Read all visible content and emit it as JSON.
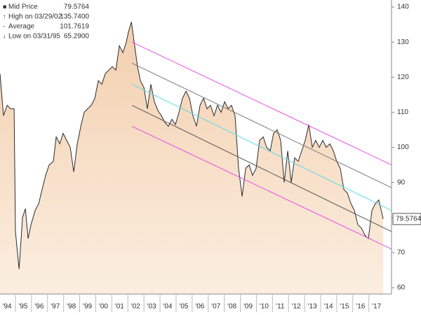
{
  "chart_data": {
    "type": "area",
    "color": "#2b2b2b",
    "fill_top": "#f3cfae",
    "fill_bottom": "#fbeee0",
    "x": [
      1994.06,
      1994.28,
      1994.5,
      1994.72,
      1994.94,
      1995.02,
      1995.25,
      1995.46,
      1995.64,
      1995.81,
      1995.99,
      1996.25,
      1996.47,
      1996.68,
      1996.9,
      1997.12,
      1997.38,
      1997.56,
      1997.78,
      1997.99,
      1998.21,
      1998.43,
      1998.65,
      1998.87,
      1999.09,
      1999.3,
      1999.52,
      1999.74,
      1999.96,
      2000.18,
      2000.4,
      2000.61,
      2000.83,
      2001.05,
      2001.27,
      2001.49,
      2001.71,
      2001.92,
      2002.06,
      2002.24,
      2002.62,
      2002.8,
      2003.02,
      2003.23,
      2003.45,
      2003.67,
      2003.89,
      2004.11,
      2004.33,
      2004.54,
      2004.76,
      2004.98,
      2005.2,
      2005.42,
      2005.64,
      2005.85,
      2006.07,
      2006.29,
      2006.51,
      2006.73,
      2006.95,
      2007.16,
      2007.38,
      2007.6,
      2007.82,
      2008.04,
      2008.26,
      2008.47,
      2008.69,
      2008.91,
      2009.13,
      2009.35,
      2009.57,
      2009.78,
      2010.0,
      2010.22,
      2010.44,
      2010.66,
      2010.88,
      2011.09,
      2011.31,
      2011.53,
      2011.75,
      2011.97,
      2012.19,
      2012.4,
      2012.62,
      2012.84,
      2013.06,
      2013.28,
      2013.5,
      2013.71,
      2013.93,
      2014.15,
      2014.37,
      2014.59,
      2014.81,
      2015.02,
      2015.24,
      2015.46,
      2015.68,
      2015.9,
      2016.12,
      2016.33,
      2016.55,
      2016.77,
      2016.99,
      2017.21,
      2017.43,
      2017.64,
      2017.91
    ],
    "values": [
      121,
      109,
      112,
      111,
      111,
      76,
      65.29,
      80,
      82.5,
      74,
      78,
      82,
      84,
      88,
      92,
      95,
      96,
      103,
      101,
      104,
      102,
      100,
      93,
      101,
      106,
      110,
      111,
      112,
      114,
      119,
      118,
      121,
      122,
      123,
      122,
      129,
      127,
      130,
      133,
      135.74,
      123,
      119,
      117,
      111,
      118,
      113,
      110.5,
      109,
      107,
      106,
      108,
      106.5,
      110,
      114,
      116,
      114,
      109,
      106,
      112,
      114,
      111,
      112,
      109,
      112,
      110,
      113,
      111,
      112,
      109,
      94,
      86,
      94,
      95,
      92,
      94,
      102,
      103,
      100,
      99,
      104,
      105,
      102,
      90,
      99,
      90,
      97,
      96,
      99,
      102,
      106.5,
      100,
      102,
      100,
      102,
      100,
      101,
      99,
      96,
      94,
      88,
      87,
      84,
      82,
      78,
      77,
      75,
      74,
      82,
      84,
      85,
      79.5764
    ],
    "channels": [
      {
        "color": "#e94be9",
        "x": [
          2002.27,
          2018.43
        ],
        "values": [
          130,
          95
        ]
      },
      {
        "color": "#7a7a7a",
        "x": [
          2002.27,
          2018.43
        ],
        "values": [
          124,
          88.5
        ]
      },
      {
        "color": "#5fd8e8",
        "x": [
          2002.27,
          2018.43
        ],
        "values": [
          118,
          82
        ]
      },
      {
        "color": "#555555",
        "x": [
          2002.27,
          2018.43
        ],
        "values": [
          112,
          76
        ]
      },
      {
        "color": "#e94be9",
        "x": [
          2002.27,
          2018.43
        ],
        "values": [
          106,
          71
        ]
      }
    ],
    "stats": [
      {
        "label": "Mid Price",
        "value": 79.5764,
        "value_label": "79.5764"
      },
      {
        "label": "High on 03/29/02",
        "value": 135.74,
        "value_label": "135.7400"
      },
      {
        "label": "Average",
        "value": 101.7619,
        "value_label": "101.7619"
      },
      {
        "label": "Low on 03/31/95",
        "value": 65.29,
        "value_label": "65.2900"
      }
    ],
    "xlim": [
      1994.06,
      2018.43
    ],
    "ylim": [
      58.2,
      142
    ],
    "yticks": [
      60,
      70,
      80,
      90,
      100,
      110,
      120,
      130,
      140
    ],
    "xticks": [
      {
        "value": 1994.5,
        "label": "'94"
      },
      {
        "value": 1995.5,
        "label": "'95"
      },
      {
        "value": 1996.5,
        "label": "'96"
      },
      {
        "value": 1997.5,
        "label": "'97"
      },
      {
        "value": 1998.5,
        "label": "'98"
      },
      {
        "value": 1999.5,
        "label": "'99"
      },
      {
        "value": 2000.5,
        "label": "'00"
      },
      {
        "value": 2001.5,
        "label": "'01"
      },
      {
        "value": 2002.5,
        "label": "'02"
      },
      {
        "value": 2003.5,
        "label": "'03"
      },
      {
        "value": 2004.5,
        "label": "'04"
      },
      {
        "value": 2005.5,
        "label": "'05"
      },
      {
        "value": 2006.5,
        "label": "'06"
      },
      {
        "value": 2007.5,
        "label": "'07"
      },
      {
        "value": 2008.5,
        "label": "'08"
      },
      {
        "value": 2009.5,
        "label": "'09"
      },
      {
        "value": 2010.5,
        "label": "'10"
      },
      {
        "value": 2011.5,
        "label": "'11"
      },
      {
        "value": 2012.5,
        "label": "'12"
      },
      {
        "value": 2013.5,
        "label": "'13"
      },
      {
        "value": 2014.5,
        "label": "'14"
      },
      {
        "value": 2015.5,
        "label": "'15"
      },
      {
        "value": 2016.5,
        "label": "'16"
      },
      {
        "value": 2017.5,
        "label": "'17"
      }
    ]
  }
}
